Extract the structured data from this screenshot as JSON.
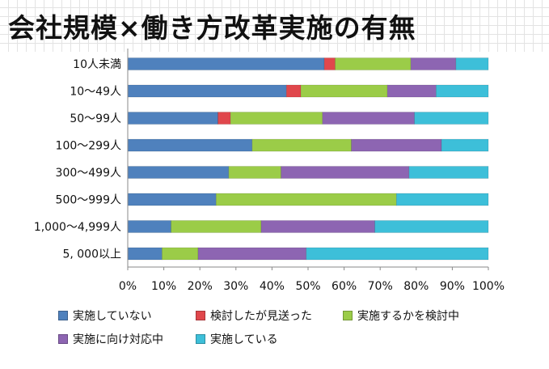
{
  "title": "会社規模×働き方改革実施の有無",
  "chart_data": {
    "type": "bar",
    "orientation": "horizontal",
    "stacked": "percent",
    "categories": [
      "10人未満",
      "10～49人",
      "50～99人",
      "100～299人",
      "300～499人",
      "500～999人",
      "1,000～4,999人",
      "5, 000以上"
    ],
    "series": [
      {
        "name": "実施していない",
        "color": "#4f81bd",
        "values": [
          54.5,
          44,
          25,
          34.5,
          28,
          24.5,
          12,
          9.5
        ]
      },
      {
        "name": "検討したが見送った",
        "color": "#e0474c",
        "values": [
          3,
          4,
          3.5,
          0,
          0,
          0,
          0,
          0
        ]
      },
      {
        "name": "実施するかを検討中",
        "color": "#9bcc48",
        "values": [
          21,
          24,
          25.5,
          27.5,
          14.5,
          50,
          25,
          10
        ]
      },
      {
        "name": "実施に向け対応中",
        "color": "#8d65b2",
        "values": [
          12.5,
          13.5,
          25.5,
          25,
          35.5,
          0,
          31.5,
          30
        ]
      },
      {
        "name": "実施している",
        "color": "#3dbfd9",
        "values": [
          9,
          14.5,
          20.5,
          13,
          22,
          25.5,
          31.5,
          50.5
        ]
      }
    ],
    "x_ticks": [
      "0%",
      "10%",
      "20%",
      "30%",
      "40%",
      "50%",
      "60%",
      "70%",
      "80%",
      "90%",
      "100%"
    ],
    "xlim": [
      0,
      100
    ],
    "grid": false,
    "legend_position": "bottom"
  }
}
